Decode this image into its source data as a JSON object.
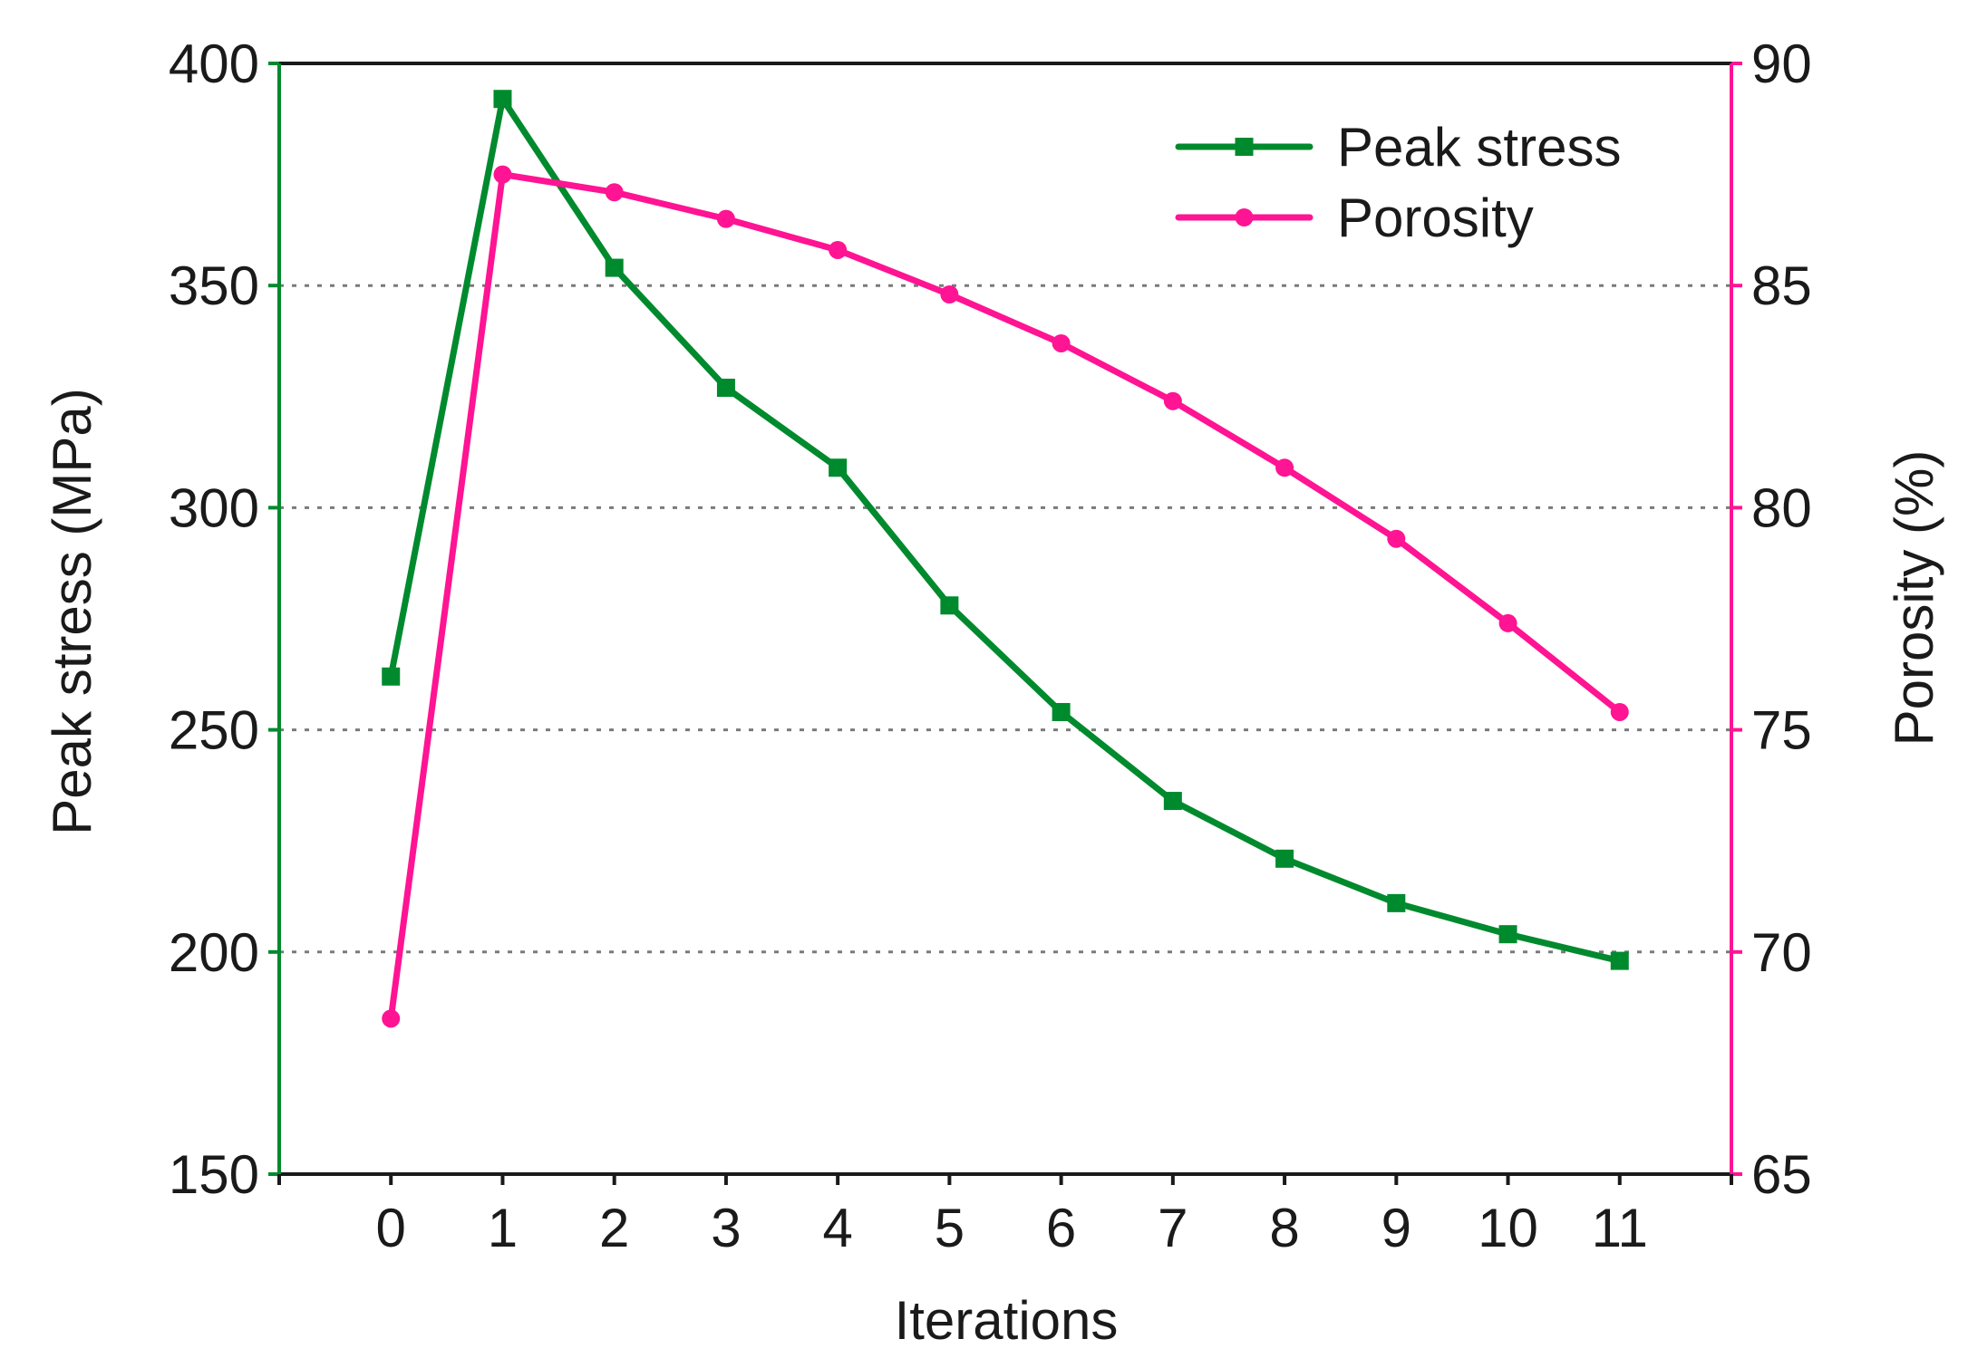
{
  "chart_data": {
    "type": "line",
    "title": "",
    "xlabel": "Iterations",
    "ylabel": "Peak stress (MPa)",
    "y2label": "Porosity (%)",
    "x": [
      0,
      1,
      2,
      3,
      4,
      5,
      6,
      7,
      8,
      9,
      10,
      11
    ],
    "xlim": [
      -1,
      12
    ],
    "ylim": [
      150,
      400
    ],
    "y2lim": [
      65,
      90
    ],
    "yticks": [
      150,
      200,
      250,
      300,
      350,
      400
    ],
    "y2ticks": [
      65,
      70,
      75,
      80,
      85,
      90
    ],
    "grid": "horizontal dotted",
    "legend_position": "top-right",
    "series": [
      {
        "name": "Peak stress",
        "axis": "left",
        "marker": "square",
        "color": "#008a2e",
        "values": [
          262,
          392,
          354,
          327,
          309,
          278,
          254,
          234,
          221,
          211,
          204,
          198
        ]
      },
      {
        "name": "Porosity",
        "axis": "right",
        "marker": "circle",
        "color": "#ff1493",
        "values": [
          68.5,
          87.5,
          87.1,
          86.5,
          85.8,
          84.8,
          83.7,
          82.4,
          80.9,
          79.3,
          77.4,
          75.4
        ]
      }
    ]
  }
}
